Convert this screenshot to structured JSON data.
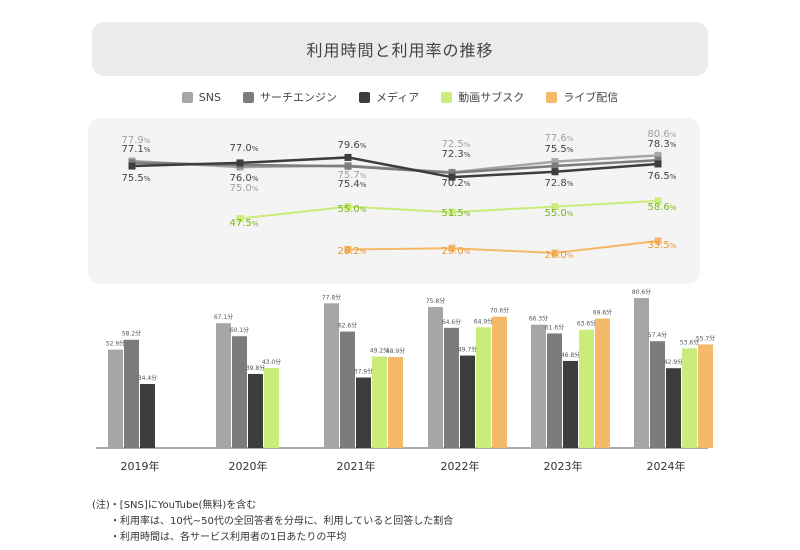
{
  "title": "利用時間と利用率の推移",
  "years": [
    "2019年",
    "2020年",
    "2021年",
    "2022年",
    "2023年",
    "2024年"
  ],
  "legend": [
    {
      "name": "SNS",
      "color": "#a6a6a6"
    },
    {
      "name": "サーチエンジン",
      "color": "#7c7c7c"
    },
    {
      "name": "メディア",
      "color": "#3d3d3d"
    },
    {
      "name": "動画サブスク",
      "color": "#c9ec7a"
    },
    {
      "name": "ライブ配信",
      "color": "#f5b96a"
    }
  ],
  "rate_unit": "%",
  "time_unit": "分",
  "chart_data": [
    {
      "type": "line",
      "x": [
        "2019年",
        "2020年",
        "2021年",
        "2022年",
        "2023年",
        "2024年"
      ],
      "unit": "%",
      "series": [
        {
          "name": "SNS",
          "color": "#a6a6a6",
          "values": [
            77.9,
            75.0,
            75.7,
            72.5,
            77.6,
            80.6
          ]
        },
        {
          "name": "サーチエンジン",
          "color": "#7c7c7c",
          "values": [
            77.1,
            76.0,
            75.4,
            72.3,
            75.5,
            78.3
          ]
        },
        {
          "name": "メディア",
          "color": "#3d3d3d",
          "values": [
            75.5,
            77.0,
            79.6,
            70.2,
            72.8,
            76.5
          ]
        },
        {
          "name": "動画サブスク",
          "color": "#c9ec7a",
          "values": [
            null,
            47.5,
            55.0,
            51.5,
            55.0,
            58.6
          ]
        },
        {
          "name": "ライブ配信",
          "color": "#f5b96a",
          "values": [
            null,
            null,
            28.2,
            29.0,
            26.0,
            33.5
          ]
        }
      ]
    },
    {
      "type": "bar",
      "categories": [
        "2019年",
        "2020年",
        "2021年",
        "2022年",
        "2023年",
        "2024年"
      ],
      "unit": "分",
      "series": [
        {
          "name": "SNS",
          "color": "#a6a6a6",
          "values": [
            52.9,
            67.1,
            77.8,
            75.8,
            66.3,
            80.6
          ]
        },
        {
          "name": "サーチエンジン",
          "color": "#7c7c7c",
          "values": [
            58.2,
            60.1,
            62.6,
            64.6,
            61.6,
            57.4
          ]
        },
        {
          "name": "メディア",
          "color": "#3d3d3d",
          "values": [
            34.4,
            39.8,
            37.9,
            49.7,
            46.8,
            42.9
          ]
        },
        {
          "name": "動画サブスク",
          "color": "#c9ec7a",
          "values": [
            null,
            43.0,
            49.2,
            64.9,
            63.6,
            53.6
          ]
        },
        {
          "name": "ライブ配信",
          "color": "#f5b96a",
          "values": [
            null,
            null,
            48.9,
            70.6,
            69.6,
            55.7
          ]
        }
      ]
    }
  ],
  "notes": [
    "(注)・[SNS]にYouTube(無料)を含む",
    "・利用率は、10代~50代の全回答者を分母に、利用していると回答した割合",
    "・利用時間は、各サービス利用者の1日あたりの平均"
  ]
}
